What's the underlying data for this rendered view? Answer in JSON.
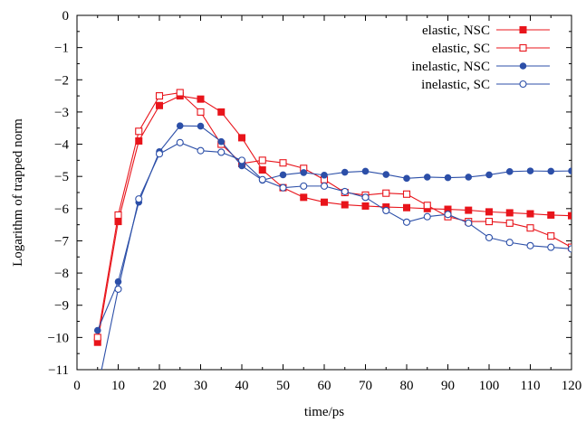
{
  "chart_data": {
    "type": "line",
    "xlabel": "time/ps",
    "ylabel": "Logarithm of trapped norm",
    "xlim": [
      0,
      120
    ],
    "ylim": [
      -11,
      0
    ],
    "xticks": [
      0,
      10,
      20,
      30,
      40,
      50,
      60,
      70,
      80,
      90,
      100,
      110,
      120
    ],
    "yticks": [
      0,
      -1,
      -2,
      -3,
      -4,
      -5,
      -6,
      -7,
      -8,
      -9,
      -10,
      -11
    ],
    "grid": false,
    "legend_position": "top-right",
    "x": [
      5,
      10,
      15,
      20,
      25,
      30,
      35,
      40,
      45,
      50,
      55,
      60,
      65,
      70,
      75,
      80,
      85,
      90,
      95,
      100,
      105,
      110,
      115,
      120
    ],
    "series": [
      {
        "name": "elastic, NSC",
        "color": "#e8141b",
        "marker": "filled-square",
        "values": [
          -10.15,
          -6.4,
          -3.9,
          -2.8,
          -2.5,
          -2.6,
          -3.0,
          -3.8,
          -4.8,
          -5.35,
          -5.65,
          -5.8,
          -5.88,
          -5.92,
          -5.95,
          -5.97,
          -6.0,
          -6.02,
          -6.05,
          -6.1,
          -6.13,
          -6.16,
          -6.2,
          -6.22
        ]
      },
      {
        "name": "elastic, SC",
        "color": "#e8141b",
        "marker": "open-square",
        "values": [
          -10.0,
          -6.2,
          -3.6,
          -2.5,
          -2.4,
          -3.0,
          -4.0,
          -4.6,
          -4.5,
          -4.58,
          -4.75,
          -5.1,
          -5.5,
          -5.58,
          -5.52,
          -5.55,
          -5.9,
          -6.25,
          -6.4,
          -6.4,
          -6.45,
          -6.6,
          -6.85,
          -7.2
        ]
      },
      {
        "name": "inelastic, NSC",
        "color": "#2c4fa8",
        "marker": "filled-circle",
        "values": [
          -9.78,
          -8.27,
          -5.8,
          -4.23,
          -3.43,
          -3.44,
          -3.92,
          -4.67,
          -5.12,
          -4.95,
          -4.88,
          -4.96,
          -4.87,
          -4.84,
          -4.94,
          -5.06,
          -5.02,
          -5.04,
          -5.02,
          -4.95,
          -4.85,
          -4.83,
          -4.84,
          -4.83
        ]
      },
      {
        "name": "inelastic, SC",
        "color": "#2c4fa8",
        "marker": "open-circle",
        "values": [
          -11.6,
          -8.5,
          -5.7,
          -4.3,
          -3.95,
          -4.2,
          -4.25,
          -4.5,
          -5.1,
          -5.35,
          -5.3,
          -5.3,
          -5.47,
          -5.65,
          -6.06,
          -6.42,
          -6.25,
          -6.18,
          -6.45,
          -6.9,
          -7.05,
          -7.15,
          -7.2,
          -7.25
        ]
      }
    ]
  }
}
